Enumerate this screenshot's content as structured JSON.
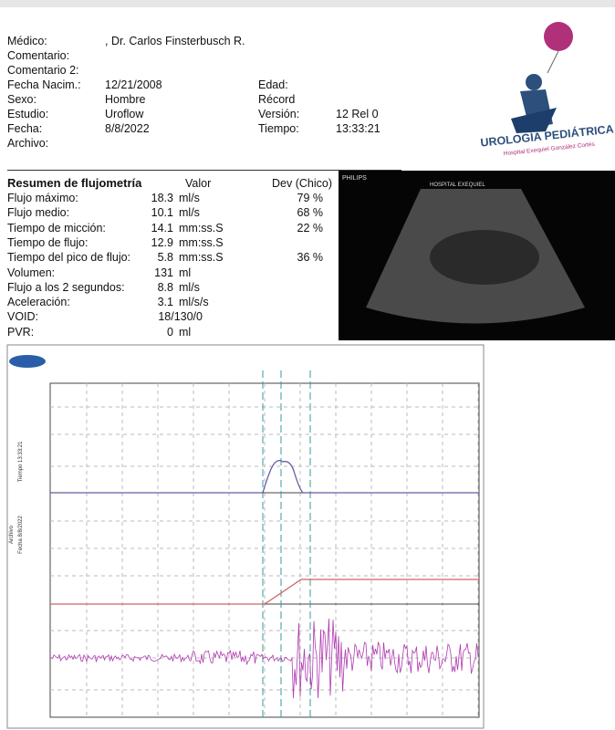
{
  "header": {
    "left": [
      {
        "label": "Médico:",
        "value": ", Dr. Carlos Finsterbusch R."
      },
      {
        "label": "Comentario:"
      },
      {
        "label": "Comentario 2:"
      },
      {
        "label": "Fecha Nacim.:",
        "value": "12/21/2008"
      },
      {
        "label": "Sexo:",
        "value": "Hombre"
      },
      {
        "label": "Estudio:",
        "value": "Uroflow"
      },
      {
        "label": "Fecha:",
        "value": "8/8/2022"
      },
      {
        "label": "Archivo:"
      }
    ],
    "right": [
      {
        "label": "Edad:"
      },
      {
        "label": "Récord"
      },
      {
        "label": "Versión:",
        "value": "12 Rel 0"
      },
      {
        "label": "Tiempo:",
        "value": "13:33:21"
      }
    ]
  },
  "logo": {
    "title": "UROLOGÍA PEDIÁTRICA",
    "subtitle": "Hospital Exequiel González Cortés"
  },
  "summary": {
    "headers": [
      "Resumen de flujometría",
      "Valor",
      "Dev (Chico)"
    ],
    "rows": [
      [
        "Flujo máximo:",
        "18.3",
        "ml/s",
        "79 %"
      ],
      [
        "Flujo medio:",
        "10.1",
        "ml/s",
        "68 %"
      ],
      [
        "Tiempo de micción:",
        "14.1",
        "mm:ss.S",
        "22 %"
      ],
      [
        "Tiempo de flujo:",
        "12.9",
        "mm:ss.S"
      ],
      [
        "Tiempo del pico de flujo:",
        "5.8",
        "mm:ss.S",
        "36 %"
      ],
      [
        "Volumen:",
        "131",
        "ml"
      ],
      [
        "Flujo a los 2 segundos:",
        "8.8",
        "ml/s"
      ],
      [
        "Aceleración:",
        "3.1",
        "ml/s/s"
      ],
      [
        "VOID:",
        "18/130/0"
      ],
      [
        "PVR:",
        "0",
        "ml"
      ]
    ]
  },
  "ultrasound": {
    "brand": "PHILIPS",
    "hospital": "HOSPITAL EXEQUIEL"
  },
  "trace": {
    "labels": [
      "Tiempo 13:33:21",
      "Fecha 8/8/2022",
      "Archivo"
    ]
  }
}
